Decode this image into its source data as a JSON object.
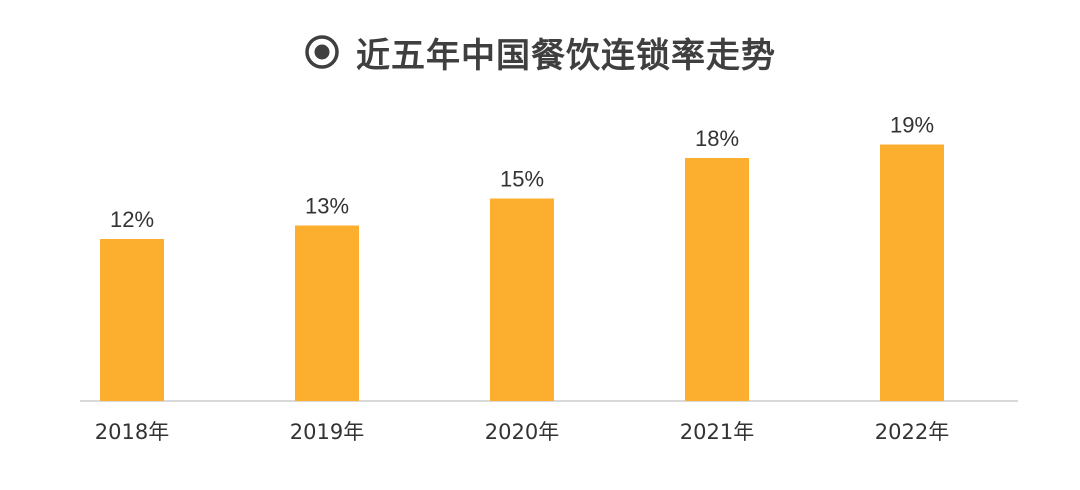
{
  "chart_data": {
    "type": "bar",
    "title": "近五年中国餐饮连锁率走势",
    "title_icon": "radio-target-icon",
    "categories": [
      "2018年",
      "2019年",
      "2020年",
      "2021年",
      "2022年"
    ],
    "values": [
      12,
      13,
      15,
      18,
      19
    ],
    "value_labels": [
      "12%",
      "13%",
      "15%",
      "18%",
      "19%"
    ],
    "unit": "%",
    "ylim": [
      0,
      20
    ],
    "grid": false,
    "bar_color": "#FCAF2E",
    "axis_color": "#d9d9d9",
    "label_color": "#333333"
  }
}
